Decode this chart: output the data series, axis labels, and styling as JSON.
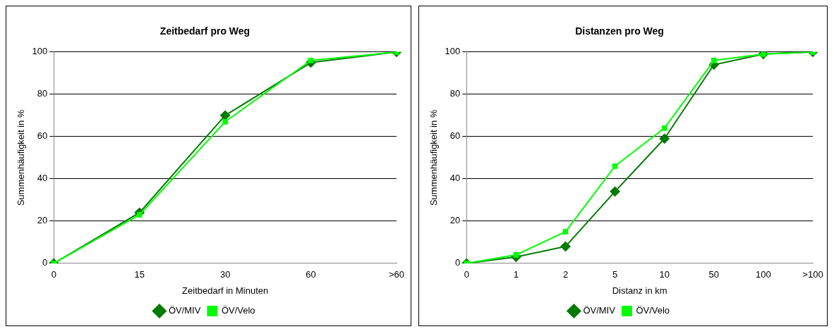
{
  "chart_data": [
    {
      "type": "line",
      "title": "Zeitbedarf pro Weg",
      "xlabel": "Zeitbedarf in Minuten",
      "ylabel": "Summenhäufigkeit in %",
      "categories": [
        "0",
        "15",
        "30",
        "60",
        ">60"
      ],
      "series": [
        {
          "name": "ÖV/MIV",
          "color": "#007a00",
          "marker": "diamond",
          "values": [
            0,
            24,
            70,
            95,
            100
          ]
        },
        {
          "name": "ÖV/Velo",
          "color": "#00ff00",
          "marker": "square",
          "values": [
            0,
            23,
            67,
            96,
            100
          ]
        }
      ],
      "ylim": [
        0,
        100
      ],
      "yticks": [
        0,
        20,
        40,
        60,
        80,
        100
      ],
      "grid": "y",
      "legend": "bottom"
    },
    {
      "type": "line",
      "title": "Distanzen pro Weg",
      "xlabel": "Distanz in km",
      "ylabel": "Summenhäufigkeit in %",
      "categories": [
        "0",
        "1",
        "2",
        "5",
        "10",
        "50",
        "100",
        ">100"
      ],
      "series": [
        {
          "name": "ÖV/MIV",
          "color": "#007a00",
          "marker": "diamond",
          "values": [
            0,
            3,
            8,
            34,
            59,
            94,
            99,
            100
          ]
        },
        {
          "name": "ÖV/Velo",
          "color": "#00ff00",
          "marker": "square",
          "values": [
            0,
            4,
            15,
            46,
            64,
            96,
            99,
            100
          ]
        }
      ],
      "ylim": [
        0,
        100
      ],
      "yticks": [
        0,
        20,
        40,
        60,
        80,
        100
      ],
      "grid": "y",
      "legend": "bottom"
    }
  ]
}
